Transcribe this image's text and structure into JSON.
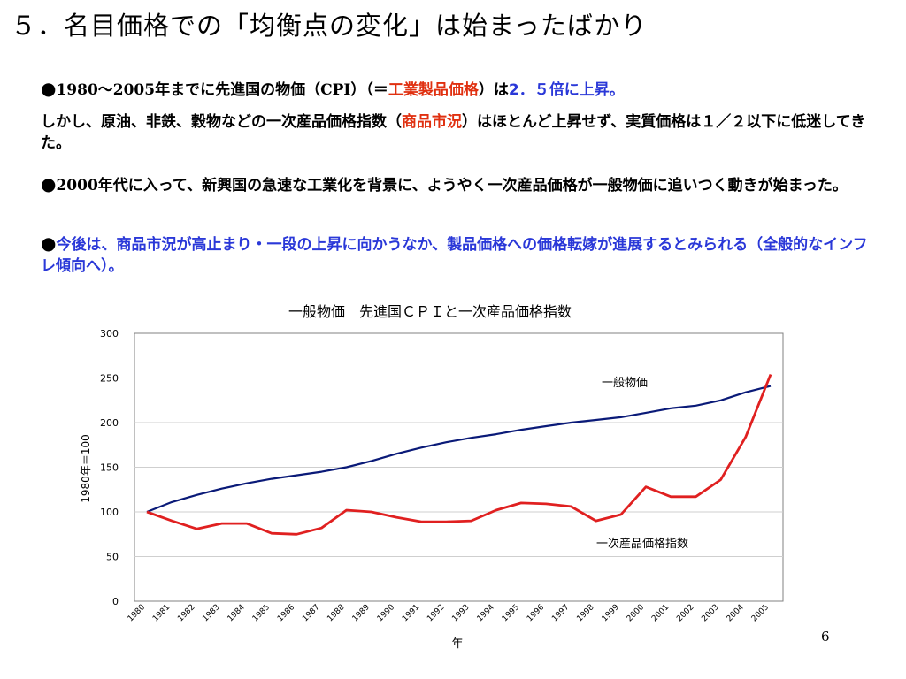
{
  "slide": {
    "title": "５．名目価格での「均衡点の変化」は始まったばかり",
    "page_number": "6"
  },
  "bullets": [
    {
      "marker": "●",
      "segments": [
        {
          "text": "1980～2005",
          "style": "serif"
        },
        {
          "text": "年までに先進国の物価（",
          "style": ""
        },
        {
          "text": "CPI",
          "style": "serif"
        },
        {
          "text": "）（＝",
          "style": ""
        },
        {
          "text": "工業製品価格",
          "style": "red"
        },
        {
          "text": "）は",
          "style": ""
        },
        {
          "text": "2．５倍に上昇。",
          "style": "blue"
        }
      ]
    },
    {
      "marker": "",
      "segments": [
        {
          "text": "しかし、原油、非鉄、穀物などの一次産品価格指数（",
          "style": ""
        },
        {
          "text": "商品市況",
          "style": "red"
        },
        {
          "text": "）はほとんど上昇せず、実質価格は１／２以下に低迷してきた。",
          "style": ""
        }
      ]
    },
    {
      "marker": "●",
      "segments": [
        {
          "text": "2000",
          "style": "serif"
        },
        {
          "text": "年代に入って、新興国の急速な工業化を背景に、ようやく一次産品価格が一般物価に追いつく動きが始まった。",
          "style": ""
        }
      ]
    },
    {
      "marker": "●",
      "segments": [
        {
          "text": "今後は、商品市況が高止まり・一段の上昇に向かうなか、製品価格への価格転嫁が進展するとみられる（全般的なインフレ傾向へ）。",
          "style": "blue"
        }
      ]
    }
  ],
  "chart_data": {
    "type": "line",
    "title": "一般物価　先進国ＣＰＩと一次産品価格指数",
    "xlabel": "年",
    "ylabel": "1980年＝100",
    "ylim": [
      0,
      300
    ],
    "yticks": [
      0,
      50,
      100,
      150,
      200,
      250,
      300
    ],
    "x": [
      "1980",
      "1981",
      "1982",
      "1983",
      "1984",
      "1985",
      "1986",
      "1987",
      "1988",
      "1989",
      "1990",
      "1991",
      "1992",
      "1993",
      "1994",
      "1995",
      "1996",
      "1997",
      "1998",
      "1999",
      "2000",
      "2001",
      "2002",
      "2003",
      "2004",
      "2005"
    ],
    "grid": true,
    "series": [
      {
        "name": "一般物価",
        "color": "#0a1a78",
        "values": [
          100,
          111,
          119,
          126,
          132,
          137,
          141,
          145,
          150,
          157,
          165,
          172,
          178,
          183,
          187,
          192,
          196,
          200,
          203,
          206,
          211,
          216,
          219,
          225,
          234,
          241
        ]
      },
      {
        "name": "一次産品価格指数",
        "color": "#e02020",
        "values": [
          100,
          90,
          81,
          87,
          87,
          76,
          75,
          82,
          102,
          100,
          94,
          89,
          89,
          90,
          102,
          110,
          109,
          106,
          90,
          97,
          128,
          117,
          117,
          136,
          184,
          254
        ]
      }
    ]
  }
}
